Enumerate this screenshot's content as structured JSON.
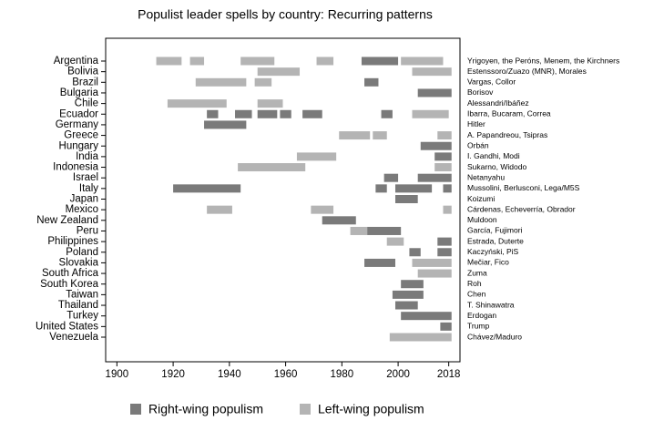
{
  "chart_data": {
    "type": "range-bar",
    "title": "Populist leader spells by country: Recurring patterns",
    "series": [
      {
        "name": "Right-wing populism",
        "color": "#7a7a7a"
      },
      {
        "name": "Left-wing populism",
        "color": "#b4b4b4"
      }
    ],
    "xlim": [
      1896,
      2022
    ],
    "xticks": [
      1900,
      1920,
      1940,
      1960,
      1980,
      2000,
      2018
    ],
    "rows": [
      {
        "country": "Argentina",
        "leaders": "Yrigoyen, the Peróns, Menem, the Kirchners",
        "spells": [
          [
            [
              1987,
              2000
            ]
          ],
          [
            [
              1914,
              1923
            ],
            [
              1926,
              1931
            ],
            [
              1944,
              1956
            ],
            [
              1971,
              1977
            ],
            [
              2001,
              2016
            ]
          ]
        ]
      },
      {
        "country": "Bolivia",
        "leaders": "Estenssoro/Zuazo (MNR), Morales",
        "spells": [
          [],
          [
            [
              1950,
              1965
            ],
            [
              2005,
              2019
            ]
          ]
        ]
      },
      {
        "country": "Brazil",
        "leaders": "Vargas, Collor",
        "spells": [
          [
            [
              1988,
              1993
            ]
          ],
          [
            [
              1928,
              1946
            ],
            [
              1949,
              1955
            ]
          ]
        ]
      },
      {
        "country": "Bulgaria",
        "leaders": "Borisov",
        "spells": [
          [
            [
              2007,
              2019
            ]
          ],
          []
        ]
      },
      {
        "country": "Chile",
        "leaders": "Alessandri/Ibáñez",
        "spells": [
          [],
          [
            [
              1918,
              1939
            ],
            [
              1950,
              1959
            ]
          ]
        ]
      },
      {
        "country": "Ecuador",
        "leaders": "Ibarra, Bucaram, Correa",
        "spells": [
          [
            [
              1932,
              1936
            ],
            [
              1942,
              1948
            ],
            [
              1950,
              1957
            ],
            [
              1958,
              1962
            ],
            [
              1966,
              1973
            ],
            [
              1994,
              1998
            ]
          ],
          [
            [
              2005,
              2018
            ]
          ]
        ]
      },
      {
        "country": "Germany",
        "leaders": "Hitler",
        "spells": [
          [
            [
              1931,
              1946
            ]
          ],
          []
        ]
      },
      {
        "country": "Greece",
        "leaders": "A. Papandreou, Tsipras",
        "spells": [
          [],
          [
            [
              1979,
              1990
            ],
            [
              1991,
              1996
            ],
            [
              2014,
              2019
            ]
          ]
        ]
      },
      {
        "country": "Hungary",
        "leaders": "Orbán",
        "spells": [
          [
            [
              2008,
              2019
            ]
          ],
          []
        ]
      },
      {
        "country": "India",
        "leaders": "I. Gandhi, Modi",
        "spells": [
          [
            [
              2013,
              2019
            ]
          ],
          [
            [
              1964,
              1978
            ]
          ]
        ]
      },
      {
        "country": "Indonesia",
        "leaders": "Sukarno, Widodo",
        "spells": [
          [],
          [
            [
              1943,
              1967
            ],
            [
              2013,
              2019
            ]
          ]
        ]
      },
      {
        "country": "Israel",
        "leaders": "Netanyahu",
        "spells": [
          [
            [
              1995,
              2000
            ],
            [
              2007,
              2019
            ]
          ],
          []
        ]
      },
      {
        "country": "Italy",
        "leaders": "Mussolini, Berlusconi, Lega/M5S",
        "spells": [
          [
            [
              1920,
              1944
            ],
            [
              1992,
              1996
            ],
            [
              1999,
              2012
            ],
            [
              2016,
              2019
            ]
          ],
          []
        ]
      },
      {
        "country": "Japan",
        "leaders": "Koizumi",
        "spells": [
          [
            [
              1999,
              2007
            ]
          ],
          []
        ]
      },
      {
        "country": "Mexico",
        "leaders": "Cárdenas, Echeverría, Obrador",
        "spells": [
          [],
          [
            [
              1932,
              1941
            ],
            [
              1969,
              1977
            ],
            [
              2016,
              2019
            ]
          ]
        ]
      },
      {
        "country": "New Zealand",
        "leaders": "Muldoon",
        "spells": [
          [
            [
              1973,
              1985
            ]
          ],
          []
        ]
      },
      {
        "country": "Peru",
        "leaders": "García, Fujimori",
        "spells": [
          [
            [
              1989,
              2001
            ]
          ],
          [
            [
              1983,
              1989
            ]
          ]
        ]
      },
      {
        "country": "Philippines",
        "leaders": "Estrada, Duterte",
        "spells": [
          [
            [
              2014,
              2019
            ]
          ],
          [
            [
              1996,
              2002
            ]
          ]
        ]
      },
      {
        "country": "Poland",
        "leaders": "Kaczyński, PiS",
        "spells": [
          [
            [
              2004,
              2008
            ],
            [
              2014,
              2019
            ]
          ],
          []
        ]
      },
      {
        "country": "Slovakia",
        "leaders": "Mečiar, Fico",
        "spells": [
          [
            [
              1988,
              1999
            ]
          ],
          [
            [
              2005,
              2019
            ]
          ]
        ]
      },
      {
        "country": "South Africa",
        "leaders": "Zuma",
        "spells": [
          [],
          [
            [
              2007,
              2019
            ]
          ]
        ]
      },
      {
        "country": "South Korea",
        "leaders": "Roh",
        "spells": [
          [
            [
              2001,
              2009
            ]
          ],
          []
        ]
      },
      {
        "country": "Taiwan",
        "leaders": "Chen",
        "spells": [
          [
            [
              1998,
              2009
            ]
          ],
          []
        ]
      },
      {
        "country": "Thailand",
        "leaders": "T. Shinawatra",
        "spells": [
          [
            [
              1999,
              2007
            ]
          ],
          []
        ]
      },
      {
        "country": "Turkey",
        "leaders": "Erdogan",
        "spells": [
          [
            [
              2001,
              2019
            ]
          ],
          []
        ]
      },
      {
        "country": "United States",
        "leaders": "Trump",
        "spells": [
          [
            [
              2015,
              2019
            ]
          ],
          []
        ]
      },
      {
        "country": "Venezuela",
        "leaders": "Chávez/Maduro",
        "spells": [
          [],
          [
            [
              1997,
              2019
            ]
          ]
        ]
      }
    ]
  }
}
